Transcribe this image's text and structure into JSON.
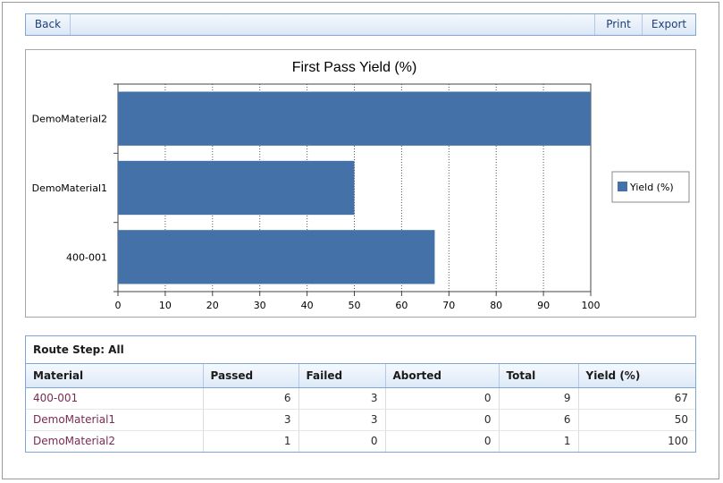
{
  "toolbar": {
    "back_label": "Back",
    "print_label": "Print",
    "export_label": "Export"
  },
  "chart_data": {
    "type": "bar",
    "orientation": "horizontal",
    "title": "First Pass Yield (%)",
    "categories": [
      "DemoMaterial2",
      "DemoMaterial1",
      "400-001"
    ],
    "series": [
      {
        "name": "Yield (%)",
        "values": [
          100,
          50,
          67
        ],
        "color": "#4472a8"
      }
    ],
    "xlim": [
      0,
      100
    ],
    "xticks": [
      "0",
      "10",
      "20",
      "30",
      "40",
      "50",
      "60",
      "70",
      "80",
      "90",
      "100"
    ],
    "grid": "vertical-dotted",
    "legend": "right"
  },
  "grid": {
    "route_step": "Route Step: All",
    "columns": [
      "Material",
      "Passed",
      "Failed",
      "Aborted",
      "Total",
      "Yield (%)"
    ],
    "rows": [
      [
        "400-001",
        "6",
        "3",
        "0",
        "9",
        "67"
      ],
      [
        "DemoMaterial1",
        "3",
        "3",
        "0",
        "6",
        "50"
      ],
      [
        "DemoMaterial2",
        "1",
        "0",
        "0",
        "1",
        "100"
      ]
    ]
  }
}
